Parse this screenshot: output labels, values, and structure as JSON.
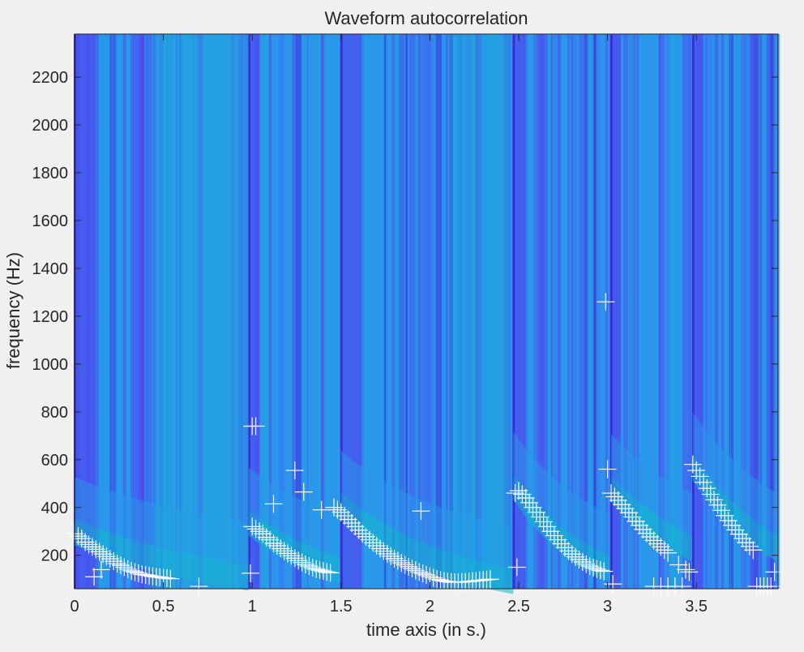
{
  "chart_data": {
    "type": "heatmap",
    "title": "Waveform autocorrelation",
    "xlabel": "time axis (in s.)",
    "ylabel": "frequency (Hz)",
    "xlim": [
      0,
      3.96
    ],
    "ylim": [
      60,
      2380
    ],
    "x_ticks": [
      0,
      0.5,
      1,
      1.5,
      2,
      2.5,
      3,
      3.5
    ],
    "x_tick_labels": [
      "0",
      "0.5",
      "1",
      "1.5",
      "2",
      "2.5",
      "3",
      "3.5"
    ],
    "y_ticks": [
      200,
      400,
      600,
      800,
      1000,
      1200,
      1400,
      1600,
      1800,
      2000,
      2200
    ],
    "y_tick_labels": [
      "200",
      "400",
      "600",
      "800",
      "1000",
      "1200",
      "1400",
      "1600",
      "1800",
      "2000",
      "2200"
    ],
    "grid": false,
    "legend": "none",
    "colormap": [
      "#3d2ad8",
      "#4a50ee",
      "#3b78f5",
      "#2a98ea",
      "#1cabdc",
      "#10b9cc",
      "#2cc7a6"
    ],
    "marker_color": "#ffffff",
    "segments": [
      {
        "start": 0.0,
        "end": 0.98,
        "f_start": 290,
        "f_end": 100
      },
      {
        "start": 0.98,
        "end": 1.5,
        "f_start": 330,
        "f_end": 130
      },
      {
        "start": 1.5,
        "end": 2.47,
        "f_start": 400,
        "f_end": 85
      },
      {
        "start": 2.47,
        "end": 3.02,
        "f_start": 480,
        "f_end": 135
      },
      {
        "start": 3.02,
        "end": 3.48,
        "f_start": 470,
        "f_end": 220
      },
      {
        "start": 3.48,
        "end": 3.96,
        "f_start": 560,
        "f_end": 220
      }
    ],
    "pitch_markers": [
      {
        "x": 0.0,
        "y": 290
      },
      {
        "x": 0.02,
        "y": 280
      },
      {
        "x": 0.04,
        "y": 270
      },
      {
        "x": 0.06,
        "y": 255
      },
      {
        "x": 0.08,
        "y": 245
      },
      {
        "x": 0.1,
        "y": 235
      },
      {
        "x": 0.12,
        "y": 225
      },
      {
        "x": 0.14,
        "y": 215
      },
      {
        "x": 0.16,
        "y": 205
      },
      {
        "x": 0.18,
        "y": 195
      },
      {
        "x": 0.2,
        "y": 185
      },
      {
        "x": 0.22,
        "y": 175
      },
      {
        "x": 0.24,
        "y": 165
      },
      {
        "x": 0.26,
        "y": 158
      },
      {
        "x": 0.28,
        "y": 150
      },
      {
        "x": 0.3,
        "y": 142
      },
      {
        "x": 0.32,
        "y": 135
      },
      {
        "x": 0.34,
        "y": 130
      },
      {
        "x": 0.36,
        "y": 125
      },
      {
        "x": 0.38,
        "y": 120
      },
      {
        "x": 0.4,
        "y": 118
      },
      {
        "x": 0.42,
        "y": 115
      },
      {
        "x": 0.44,
        "y": 112
      },
      {
        "x": 0.46,
        "y": 110
      },
      {
        "x": 0.48,
        "y": 108
      },
      {
        "x": 0.5,
        "y": 106
      },
      {
        "x": 0.52,
        "y": 104
      },
      {
        "x": 0.54,
        "y": 102
      },
      {
        "x": 0.11,
        "y": 110
      },
      {
        "x": 0.15,
        "y": 140
      },
      {
        "x": 0.7,
        "y": 70
      },
      {
        "x": 0.99,
        "y": 125
      },
      {
        "x": 1.0,
        "y": 740
      },
      {
        "x": 1.02,
        "y": 740
      },
      {
        "x": 1.0,
        "y": 320
      },
      {
        "x": 1.02,
        "y": 310
      },
      {
        "x": 1.04,
        "y": 300
      },
      {
        "x": 1.06,
        "y": 290
      },
      {
        "x": 1.08,
        "y": 275
      },
      {
        "x": 1.1,
        "y": 265
      },
      {
        "x": 1.12,
        "y": 250
      },
      {
        "x": 1.14,
        "y": 240
      },
      {
        "x": 1.16,
        "y": 228
      },
      {
        "x": 1.18,
        "y": 218
      },
      {
        "x": 1.2,
        "y": 208
      },
      {
        "x": 1.22,
        "y": 198
      },
      {
        "x": 1.24,
        "y": 188
      },
      {
        "x": 1.26,
        "y": 178
      },
      {
        "x": 1.28,
        "y": 170
      },
      {
        "x": 1.3,
        "y": 162
      },
      {
        "x": 1.32,
        "y": 155
      },
      {
        "x": 1.34,
        "y": 148
      },
      {
        "x": 1.36,
        "y": 142
      },
      {
        "x": 1.38,
        "y": 138
      },
      {
        "x": 1.4,
        "y": 134
      },
      {
        "x": 1.42,
        "y": 130
      },
      {
        "x": 1.44,
        "y": 127
      },
      {
        "x": 1.12,
        "y": 415
      },
      {
        "x": 1.24,
        "y": 555
      },
      {
        "x": 1.29,
        "y": 465
      },
      {
        "x": 1.39,
        "y": 390
      },
      {
        "x": 1.46,
        "y": 400
      },
      {
        "x": 1.48,
        "y": 390
      },
      {
        "x": 1.5,
        "y": 380
      },
      {
        "x": 1.52,
        "y": 365
      },
      {
        "x": 1.54,
        "y": 350
      },
      {
        "x": 1.56,
        "y": 335
      },
      {
        "x": 1.58,
        "y": 320
      },
      {
        "x": 1.6,
        "y": 305
      },
      {
        "x": 1.62,
        "y": 290
      },
      {
        "x": 1.64,
        "y": 278
      },
      {
        "x": 1.66,
        "y": 265
      },
      {
        "x": 1.68,
        "y": 252
      },
      {
        "x": 1.7,
        "y": 240
      },
      {
        "x": 1.72,
        "y": 228
      },
      {
        "x": 1.74,
        "y": 217
      },
      {
        "x": 1.76,
        "y": 206
      },
      {
        "x": 1.78,
        "y": 196
      },
      {
        "x": 1.8,
        "y": 186
      },
      {
        "x": 1.82,
        "y": 177
      },
      {
        "x": 1.84,
        "y": 168
      },
      {
        "x": 1.86,
        "y": 160
      },
      {
        "x": 1.88,
        "y": 152
      },
      {
        "x": 1.9,
        "y": 144
      },
      {
        "x": 1.92,
        "y": 137
      },
      {
        "x": 1.94,
        "y": 130
      },
      {
        "x": 1.96,
        "y": 124
      },
      {
        "x": 1.98,
        "y": 118
      },
      {
        "x": 2.0,
        "y": 112
      },
      {
        "x": 2.02,
        "y": 106
      },
      {
        "x": 2.04,
        "y": 100
      },
      {
        "x": 2.06,
        "y": 96
      },
      {
        "x": 2.08,
        "y": 92
      },
      {
        "x": 2.1,
        "y": 90
      },
      {
        "x": 2.12,
        "y": 88
      },
      {
        "x": 2.14,
        "y": 87
      },
      {
        "x": 2.16,
        "y": 87
      },
      {
        "x": 2.18,
        "y": 88
      },
      {
        "x": 2.2,
        "y": 89
      },
      {
        "x": 2.22,
        "y": 90
      },
      {
        "x": 2.24,
        "y": 92
      },
      {
        "x": 2.26,
        "y": 93
      },
      {
        "x": 2.28,
        "y": 95
      },
      {
        "x": 2.3,
        "y": 96
      },
      {
        "x": 2.32,
        "y": 98
      },
      {
        "x": 2.34,
        "y": 100
      },
      {
        "x": 1.95,
        "y": 385
      },
      {
        "x": 2.48,
        "y": 460
      },
      {
        "x": 2.5,
        "y": 470
      },
      {
        "x": 2.52,
        "y": 455
      },
      {
        "x": 2.54,
        "y": 440
      },
      {
        "x": 2.56,
        "y": 420
      },
      {
        "x": 2.58,
        "y": 400
      },
      {
        "x": 2.6,
        "y": 380
      },
      {
        "x": 2.62,
        "y": 360
      },
      {
        "x": 2.64,
        "y": 340
      },
      {
        "x": 2.66,
        "y": 320
      },
      {
        "x": 2.68,
        "y": 300
      },
      {
        "x": 2.7,
        "y": 282
      },
      {
        "x": 2.72,
        "y": 265
      },
      {
        "x": 2.74,
        "y": 248
      },
      {
        "x": 2.76,
        "y": 232
      },
      {
        "x": 2.78,
        "y": 218
      },
      {
        "x": 2.8,
        "y": 205
      },
      {
        "x": 2.82,
        "y": 193
      },
      {
        "x": 2.84,
        "y": 182
      },
      {
        "x": 2.86,
        "y": 172
      },
      {
        "x": 2.88,
        "y": 163
      },
      {
        "x": 2.9,
        "y": 155
      },
      {
        "x": 2.92,
        "y": 148
      },
      {
        "x": 2.94,
        "y": 142
      },
      {
        "x": 2.96,
        "y": 137
      },
      {
        "x": 2.98,
        "y": 133
      },
      {
        "x": 2.49,
        "y": 150
      },
      {
        "x": 2.99,
        "y": 1260
      },
      {
        "x": 3.0,
        "y": 560
      },
      {
        "x": 3.02,
        "y": 460
      },
      {
        "x": 3.04,
        "y": 445
      },
      {
        "x": 3.06,
        "y": 430
      },
      {
        "x": 3.08,
        "y": 412
      },
      {
        "x": 3.1,
        "y": 395
      },
      {
        "x": 3.12,
        "y": 378
      },
      {
        "x": 3.14,
        "y": 360
      },
      {
        "x": 3.16,
        "y": 342
      },
      {
        "x": 3.18,
        "y": 325
      },
      {
        "x": 3.2,
        "y": 308
      },
      {
        "x": 3.22,
        "y": 292
      },
      {
        "x": 3.24,
        "y": 277
      },
      {
        "x": 3.26,
        "y": 262
      },
      {
        "x": 3.28,
        "y": 248
      },
      {
        "x": 3.3,
        "y": 235
      },
      {
        "x": 3.32,
        "y": 222
      },
      {
        "x": 3.34,
        "y": 210
      },
      {
        "x": 3.03,
        "y": 80
      },
      {
        "x": 3.26,
        "y": 70
      },
      {
        "x": 3.3,
        "y": 70
      },
      {
        "x": 3.34,
        "y": 70
      },
      {
        "x": 3.38,
        "y": 70
      },
      {
        "x": 3.42,
        "y": 70
      },
      {
        "x": 3.4,
        "y": 160
      },
      {
        "x": 3.44,
        "y": 140
      },
      {
        "x": 3.46,
        "y": 130
      },
      {
        "x": 3.48,
        "y": 580
      },
      {
        "x": 3.5,
        "y": 555
      },
      {
        "x": 3.52,
        "y": 530
      },
      {
        "x": 3.54,
        "y": 505
      },
      {
        "x": 3.56,
        "y": 480
      },
      {
        "x": 3.58,
        "y": 455
      },
      {
        "x": 3.6,
        "y": 432
      },
      {
        "x": 3.62,
        "y": 410
      },
      {
        "x": 3.64,
        "y": 388
      },
      {
        "x": 3.66,
        "y": 366
      },
      {
        "x": 3.68,
        "y": 345
      },
      {
        "x": 3.7,
        "y": 325
      },
      {
        "x": 3.72,
        "y": 306
      },
      {
        "x": 3.74,
        "y": 288
      },
      {
        "x": 3.76,
        "y": 270
      },
      {
        "x": 3.78,
        "y": 253
      },
      {
        "x": 3.8,
        "y": 237
      },
      {
        "x": 3.82,
        "y": 222
      },
      {
        "x": 3.84,
        "y": 70
      },
      {
        "x": 3.86,
        "y": 70
      },
      {
        "x": 3.88,
        "y": 70
      },
      {
        "x": 3.9,
        "y": 70
      },
      {
        "x": 3.92,
        "y": 70
      },
      {
        "x": 3.94,
        "y": 130
      }
    ]
  }
}
